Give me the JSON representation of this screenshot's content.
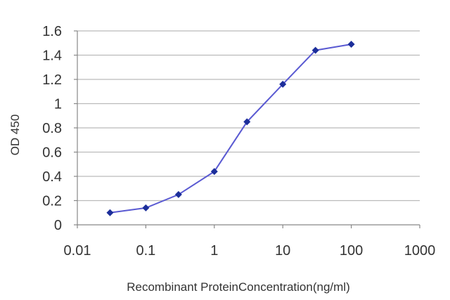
{
  "chart_data": {
    "type": "line",
    "title": "",
    "xlabel": "Recombinant ProteinConcentration(ng/ml)",
    "ylabel": "OD 450",
    "x_scale": "log",
    "xlim": [
      0.01,
      1000
    ],
    "ylim": [
      0,
      1.6
    ],
    "x_ticks": [
      0.01,
      0.1,
      1,
      10,
      100,
      1000
    ],
    "x_tick_labels": [
      "0.01",
      "0.1",
      "1",
      "10",
      "100",
      "1000"
    ],
    "y_ticks": [
      0,
      0.2,
      0.4,
      0.6,
      0.8,
      1,
      1.2,
      1.4,
      1.6
    ],
    "y_tick_labels": [
      "0",
      "0.2",
      "0.4",
      "0.6",
      "0.8",
      "1",
      "1.2",
      "1.4",
      "1.6"
    ],
    "grid": "horizontal",
    "legend": "none",
    "series": [
      {
        "x": [
          0.03,
          0.1,
          0.3,
          1,
          3,
          10,
          30,
          100
        ],
        "y": [
          0.1,
          0.14,
          0.25,
          0.44,
          0.85,
          1.16,
          1.44,
          1.49
        ],
        "line_color": "#5a5ad2",
        "marker_color": "#1c2e9a"
      }
    ],
    "colors": {
      "grid": "#bbbbbb",
      "axis": "#888888",
      "text": "#333333"
    }
  }
}
